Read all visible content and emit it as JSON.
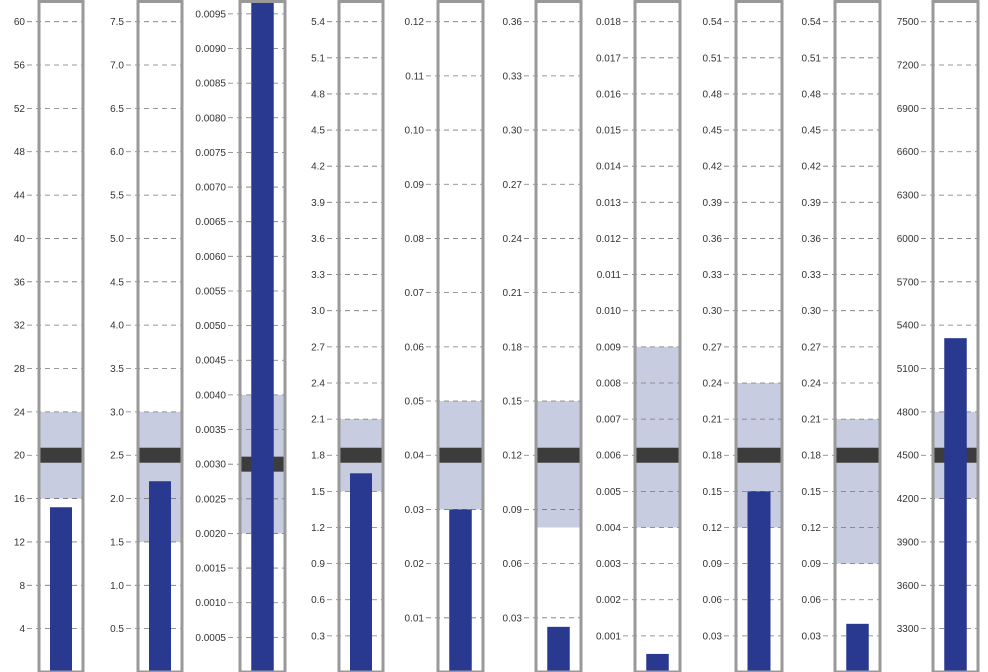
{
  "colors": {
    "frame": "#999999",
    "grid": "#777777",
    "band": "#c8cce0",
    "target": "#3c3c3c",
    "bar": "#2a3990",
    "tick_text": "#333333"
  },
  "chart_data": [
    {
      "type": "bar",
      "value": 15.2,
      "target": 20,
      "band": [
        16,
        24
      ],
      "ylim": [
        0,
        62
      ],
      "ticks": [
        4,
        8,
        12,
        16,
        20,
        24,
        28,
        32,
        36,
        40,
        44,
        48,
        52,
        56,
        60
      ],
      "tick_labels": [
        "4",
        "8",
        "12",
        "16",
        "20",
        "24",
        "28",
        "32",
        "36",
        "40",
        "44",
        "48",
        "52",
        "56",
        "60"
      ]
    },
    {
      "type": "bar",
      "value": 2.2,
      "target": 2.5,
      "band": [
        1.5,
        3.0
      ],
      "ylim": [
        0,
        7.75
      ],
      "ticks": [
        0.5,
        1.0,
        1.5,
        2.0,
        2.5,
        3.0,
        3.5,
        4.0,
        4.5,
        5.0,
        5.5,
        6.0,
        6.5,
        7.0,
        7.5
      ],
      "tick_labels": [
        "0.5",
        "1.0",
        "1.5",
        "2.0",
        "2.5",
        "3.0",
        "3.5",
        "4.0",
        "4.5",
        "5.0",
        "5.5",
        "6.0",
        "6.5",
        "7.0",
        "7.5"
      ]
    },
    {
      "type": "bar",
      "value": 0.0097,
      "target": 0.003,
      "band": [
        0.002,
        0.004
      ],
      "ylim": [
        0,
        0.0097
      ],
      "ticks": [
        0.0005,
        0.001,
        0.0015,
        0.002,
        0.0025,
        0.003,
        0.0035,
        0.004,
        0.0045,
        0.005,
        0.0055,
        0.006,
        0.0065,
        0.007,
        0.0075,
        0.008,
        0.0085,
        0.009,
        0.0095
      ],
      "tick_labels": [
        "0.0005",
        "0.0010",
        "0.0015",
        "0.0020",
        "0.0025",
        "0.0030",
        "0.0035",
        "0.0040",
        "0.0045",
        "0.0050",
        "0.0055",
        "0.0060",
        "0.0065",
        "0.0070",
        "0.0075",
        "0.0080",
        "0.0085",
        "0.0090",
        "0.0095"
      ]
    },
    {
      "type": "bar",
      "value": 1.65,
      "target": 1.8,
      "band": [
        1.5,
        2.1
      ],
      "ylim": [
        0,
        5.58
      ],
      "ticks": [
        0.3,
        0.6,
        0.9,
        1.2,
        1.5,
        1.8,
        2.1,
        2.4,
        2.7,
        3.0,
        3.3,
        3.6,
        3.9,
        4.2,
        4.5,
        4.8,
        5.1,
        5.4
      ],
      "tick_labels": [
        "0.3",
        "0.6",
        "0.9",
        "1.2",
        "1.5",
        "1.8",
        "2.1",
        "2.4",
        "2.7",
        "3.0",
        "3.3",
        "3.6",
        "3.9",
        "4.2",
        "4.5",
        "4.8",
        "5.1",
        "5.4"
      ]
    },
    {
      "type": "bar",
      "value": 0.03,
      "target": 0.04,
      "band": [
        0.03,
        0.05
      ],
      "ylim": [
        0,
        0.124
      ],
      "ticks": [
        0.01,
        0.02,
        0.03,
        0.04,
        0.05,
        0.06,
        0.07,
        0.08,
        0.09,
        0.1,
        0.11,
        0.12
      ],
      "tick_labels": [
        "0.01",
        "0.02",
        "0.03",
        "0.04",
        "0.05",
        "0.06",
        "0.07",
        "0.08",
        "0.09",
        "0.10",
        "0.11",
        "0.12"
      ]
    },
    {
      "type": "bar",
      "value": 0.025,
      "target": 0.12,
      "band": [
        0.08,
        0.15
      ],
      "ylim": [
        0,
        0.372
      ],
      "ticks": [
        0.03,
        0.06,
        0.09,
        0.12,
        0.15,
        0.18,
        0.21,
        0.24,
        0.27,
        0.3,
        0.33,
        0.36
      ],
      "tick_labels": [
        "0.03",
        "0.06",
        "0.09",
        "0.12",
        "0.15",
        "0.18",
        "0.21",
        "0.24",
        "0.27",
        "0.30",
        "0.33",
        "0.36"
      ]
    },
    {
      "type": "bar",
      "value": 0.0005,
      "target": 0.006,
      "band": [
        0.004,
        0.009
      ],
      "ylim": [
        0,
        0.0186
      ],
      "ticks": [
        0.001,
        0.002,
        0.003,
        0.004,
        0.005,
        0.006,
        0.007,
        0.008,
        0.009,
        0.01,
        0.011,
        0.012,
        0.013,
        0.014,
        0.015,
        0.016,
        0.017,
        0.018
      ],
      "tick_labels": [
        "0.001",
        "0.002",
        "0.003",
        "0.004",
        "0.005",
        "0.006",
        "0.007",
        "0.008",
        "0.009",
        "0.010",
        "0.011",
        "0.012",
        "0.013",
        "0.014",
        "0.015",
        "0.016",
        "0.017",
        "0.018"
      ]
    },
    {
      "type": "bar",
      "value": 0.15,
      "target": 0.18,
      "band": [
        0.12,
        0.24
      ],
      "ylim": [
        0,
        0.558
      ],
      "ticks": [
        0.03,
        0.06,
        0.09,
        0.12,
        0.15,
        0.18,
        0.21,
        0.24,
        0.27,
        0.3,
        0.33,
        0.36,
        0.39,
        0.42,
        0.45,
        0.48,
        0.51,
        0.54
      ],
      "tick_labels": [
        "0.03",
        "0.06",
        "0.09",
        "0.12",
        "0.15",
        "0.18",
        "0.21",
        "0.24",
        "0.27",
        "0.30",
        "0.33",
        "0.36",
        "0.39",
        "0.42",
        "0.45",
        "0.48",
        "0.51",
        "0.54"
      ]
    },
    {
      "type": "bar",
      "value": 0.04,
      "target": 0.18,
      "band": [
        0.09,
        0.21
      ],
      "ylim": [
        0,
        0.558
      ],
      "ticks": [
        0.03,
        0.06,
        0.09,
        0.12,
        0.15,
        0.18,
        0.21,
        0.24,
        0.27,
        0.3,
        0.33,
        0.36,
        0.39,
        0.42,
        0.45,
        0.48,
        0.51,
        0.54
      ],
      "tick_labels": [
        "0.03",
        "0.06",
        "0.09",
        "0.12",
        "0.15",
        "0.18",
        "0.21",
        "0.24",
        "0.27",
        "0.30",
        "0.33",
        "0.36",
        "0.39",
        "0.42",
        "0.45",
        "0.48",
        "0.51",
        "0.54"
      ]
    },
    {
      "type": "bar",
      "value": 5310,
      "target": 4500,
      "band": [
        4200,
        4800
      ],
      "ylim": [
        3000,
        7650
      ],
      "ticks": [
        3300,
        3600,
        3900,
        4200,
        4500,
        4800,
        5100,
        5400,
        5700,
        6000,
        6300,
        6600,
        6900,
        7200,
        7500
      ],
      "tick_labels": [
        "3300",
        "3600",
        "3900",
        "4200",
        "4500",
        "4800",
        "5100",
        "5400",
        "5700",
        "6000",
        "6300",
        "6600",
        "6900",
        "7200",
        "7500"
      ]
    }
  ]
}
